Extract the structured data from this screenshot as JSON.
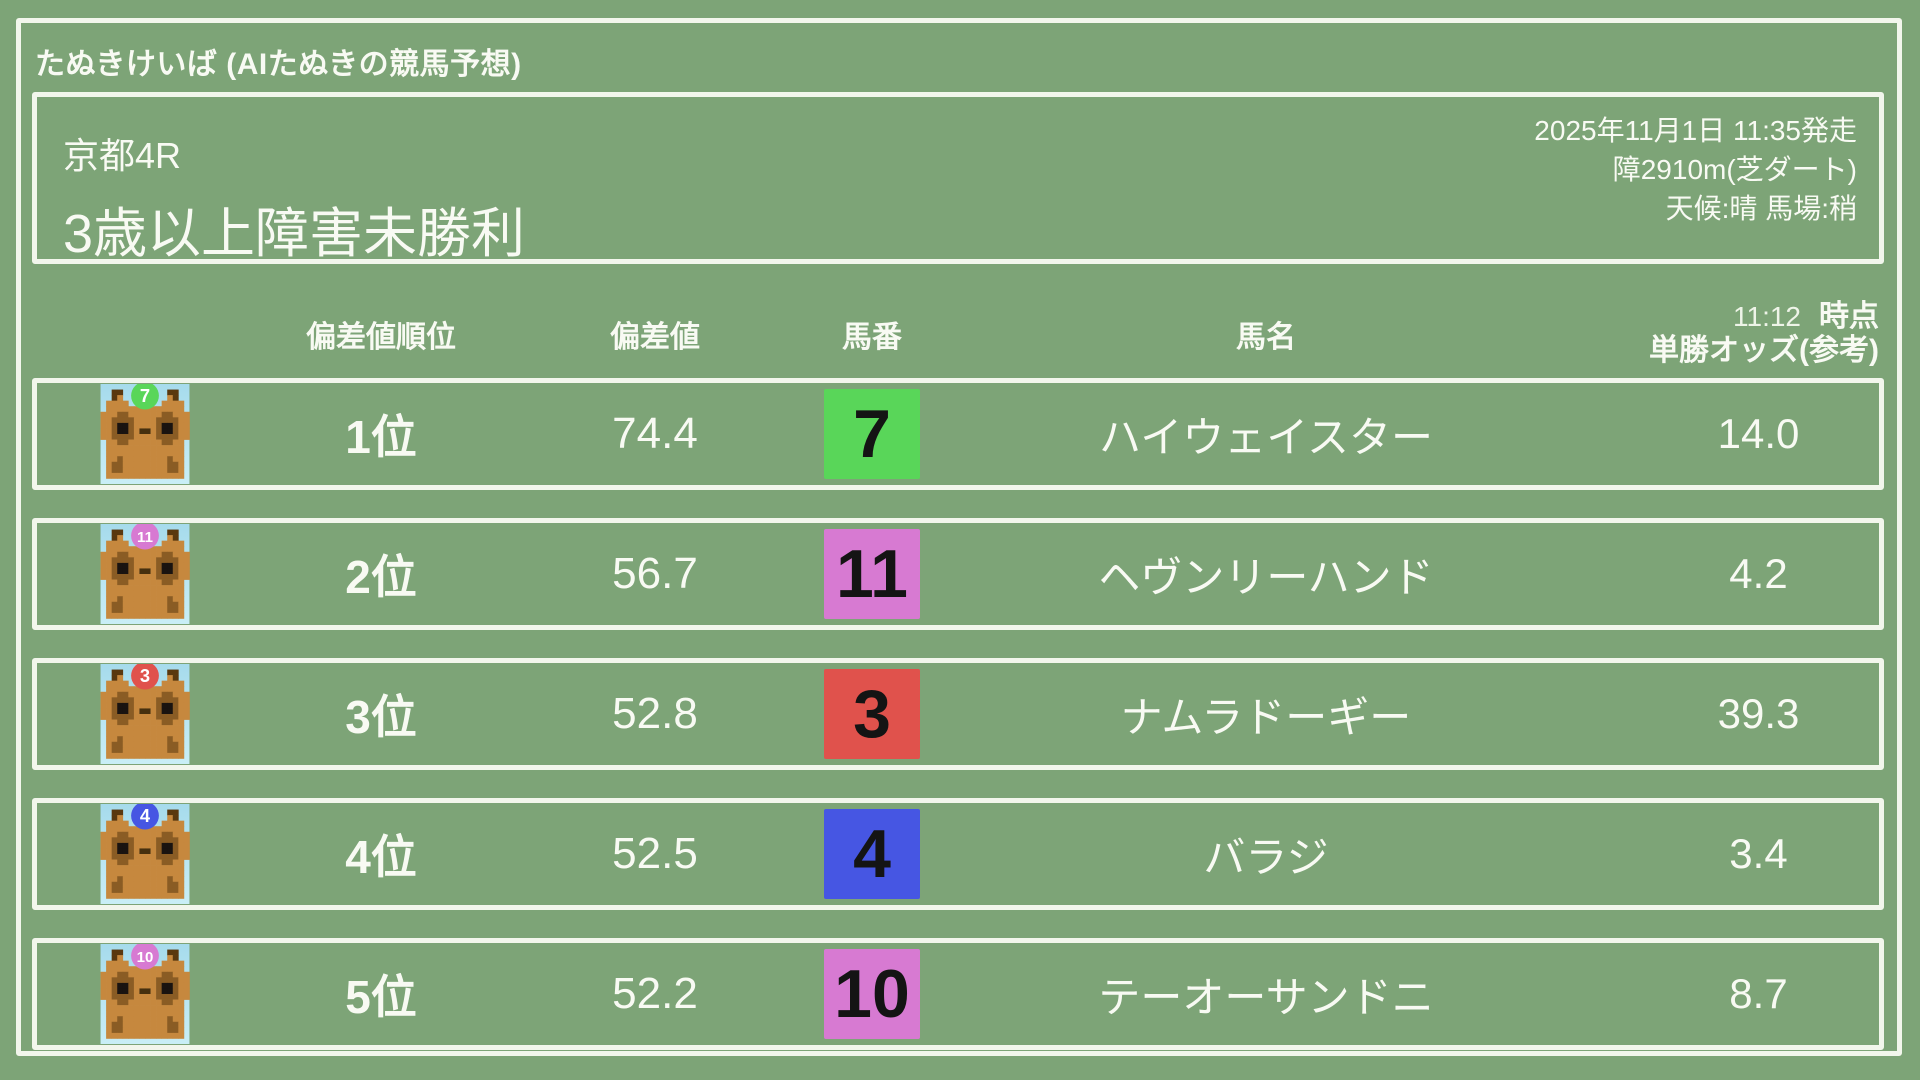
{
  "app": {
    "title": "たぬきけいば (AIたぬきの競馬予想)"
  },
  "race": {
    "course_race": "京都4R",
    "race_name": "3歳以上障害未勝利",
    "start_info": "2025年11月1日 11:35発走",
    "distance": "障2910m(芝ダート)",
    "conditions": "天候:晴 馬場:稍"
  },
  "table": {
    "headers": {
      "rank": "偏差値順位",
      "value": "偏差値",
      "number": "馬番",
      "name": "馬名",
      "odds_time": "11:12",
      "odds_time_suffix": "時点",
      "odds_label": "単勝オッズ(参考)"
    },
    "rows": [
      {
        "rank": "1位",
        "value": "74.4",
        "number": "7",
        "number_color": "#59d659",
        "name": "ハイウェイスター",
        "odds": "14.0"
      },
      {
        "rank": "2位",
        "value": "56.7",
        "number": "11",
        "number_color": "#d77ad2",
        "name": "ヘヴンリーハンド",
        "odds": "4.2"
      },
      {
        "rank": "3位",
        "value": "52.8",
        "number": "3",
        "number_color": "#e0524c",
        "name": "ナムラドーギー",
        "odds": "39.3"
      },
      {
        "rank": "4位",
        "value": "52.5",
        "number": "4",
        "number_color": "#4656e3",
        "name": "バラジ",
        "odds": "3.4"
      },
      {
        "rank": "5位",
        "value": "52.2",
        "number": "10",
        "number_color": "#d77ad2",
        "name": "テーオーサンドニ",
        "odds": "8.7"
      }
    ]
  },
  "colors": {
    "background": "#7da477",
    "frame_border": "#f2f6ec",
    "text": "#f8faf3",
    "number_text": "#141414",
    "avatar_sky_top": "#a6dbec",
    "avatar_sky_bottom": "#c9eef6",
    "tanuki_body": "#c6883e",
    "tanuki_dark": "#8a5c24"
  }
}
